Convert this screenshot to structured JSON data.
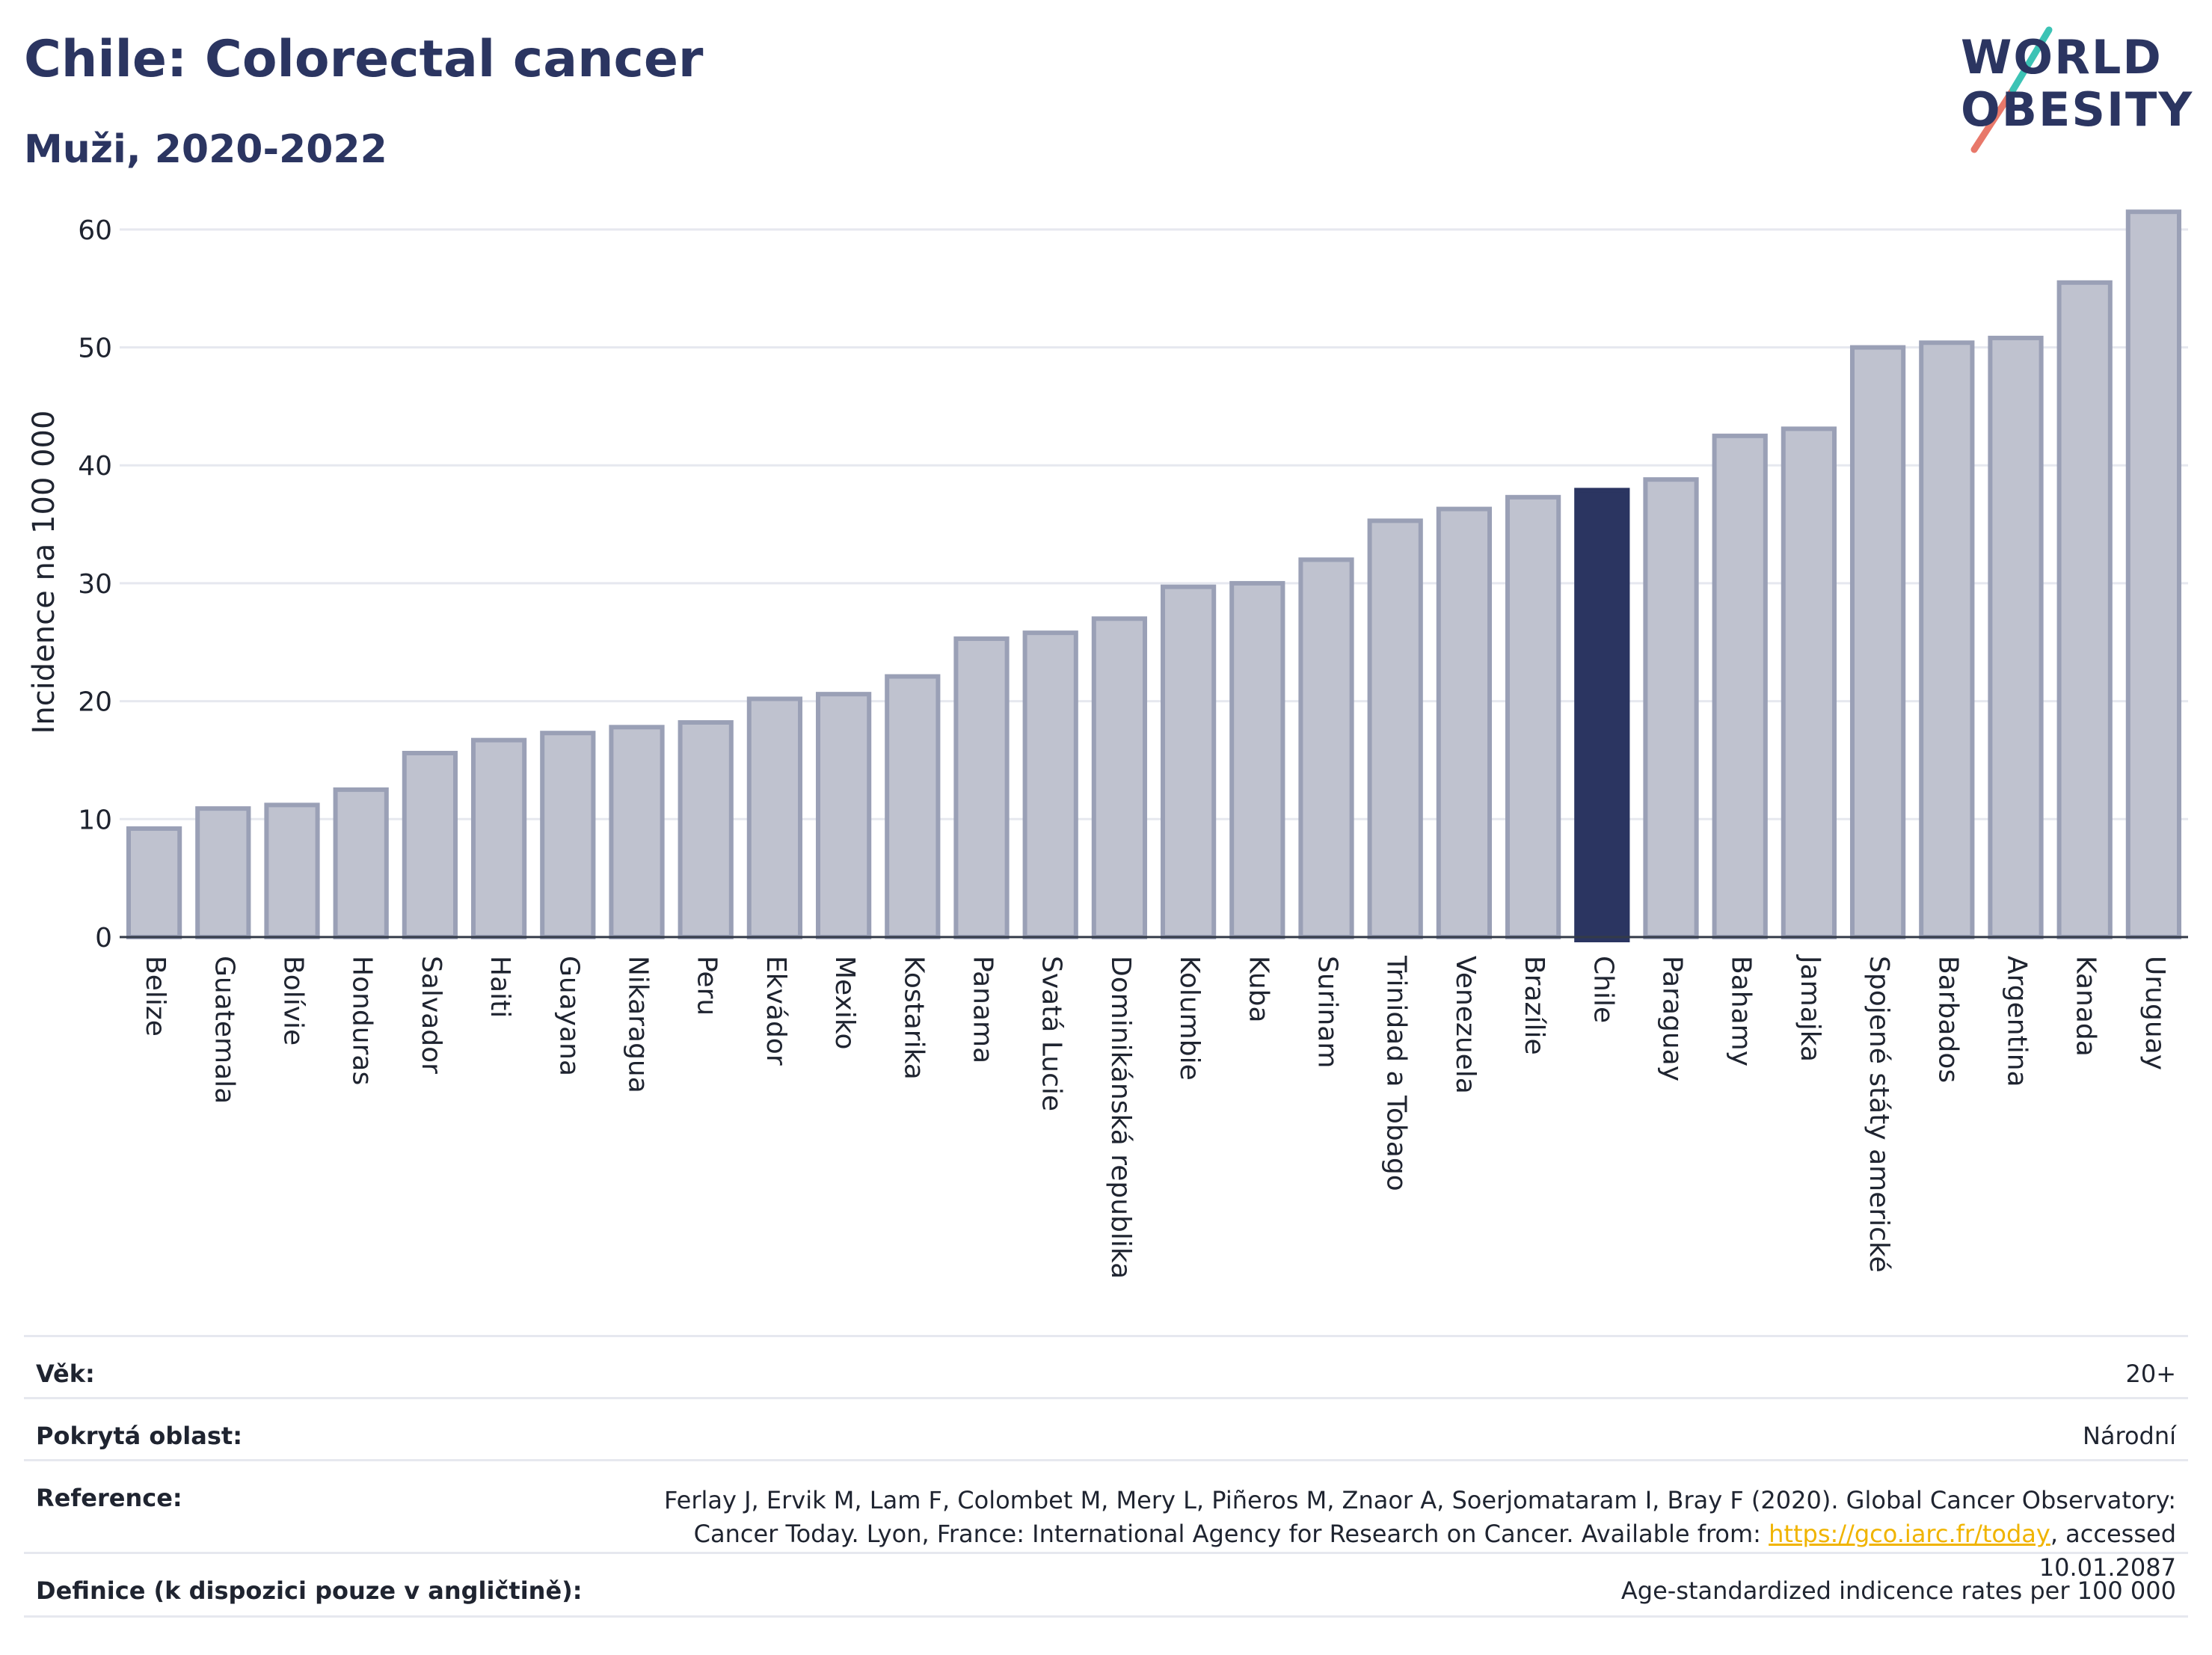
{
  "header": {
    "title": "Chile: Colorectal cancer",
    "subtitle": "Muži, 2020-2022",
    "logo_line1": "WORLD",
    "logo_line2": "OBESITY"
  },
  "colors": {
    "bar": "#bfc2cf",
    "bar_stroke": "#9aa0b6",
    "highlight": "#2b3561",
    "grid": "#e6e8ef",
    "text": "#1f2430",
    "logo_slash_a": "#e8786a",
    "logo_slash_b": "#3cc3b5"
  },
  "chart_data": {
    "type": "bar",
    "ylabel": "Incidence na 100 000",
    "ylim": [
      0,
      65
    ],
    "yticks": [
      0,
      10,
      20,
      30,
      40,
      50,
      60
    ],
    "grid": true,
    "highlight_category": "Chile",
    "categories": [
      "Belize",
      "Guatemala",
      "Bolívie",
      "Honduras",
      "Salvador",
      "Haiti",
      "Guayana",
      "Nikaragua",
      "Peru",
      "Ekvádor",
      "Mexiko",
      "Kostarika",
      "Panama",
      "Svatá Lucie",
      "Dominikánská republika",
      "Kolumbie",
      "Kuba",
      "Surinam",
      "Trinidad a Tobago",
      "Venezuela",
      "Brazílie",
      "Chile",
      "Paraguay",
      "Bahamy",
      "Jamajka",
      "Spojené státy americké",
      "Barbados",
      "Argentina",
      "Kanada",
      "Uruguay"
    ],
    "values": [
      9.2,
      10.9,
      11.2,
      12.5,
      15.6,
      16.7,
      17.3,
      17.8,
      18.2,
      20.2,
      20.6,
      22.1,
      25.3,
      25.8,
      27.0,
      29.7,
      30.0,
      32.0,
      35.3,
      36.3,
      37.3,
      37.9,
      38.8,
      42.5,
      43.1,
      50.0,
      50.4,
      50.8,
      55.5,
      61.5
    ]
  },
  "info": {
    "age_label": "Věk:",
    "age_value": "20+",
    "area_label": "Pokrytá oblast:",
    "area_value": "Národní",
    "ref_label": "Reference:",
    "ref_text_1": "Ferlay J, Ervik M, Lam F, Colombet M, Mery L, Piñeros M, Znaor A, Soerjomataram I, Bray F (2020). Global Cancer Observatory: Cancer Today. Lyon, France: International Agency for Research on Cancer. Available from: ",
    "ref_link": "https://gco.iarc.fr/today",
    "ref_text_2": ", accessed 10.01.2087",
    "def_label": "Definice (k dispozici pouze v angličtině):",
    "def_value": "Age-standardized indicence rates per 100 000"
  }
}
